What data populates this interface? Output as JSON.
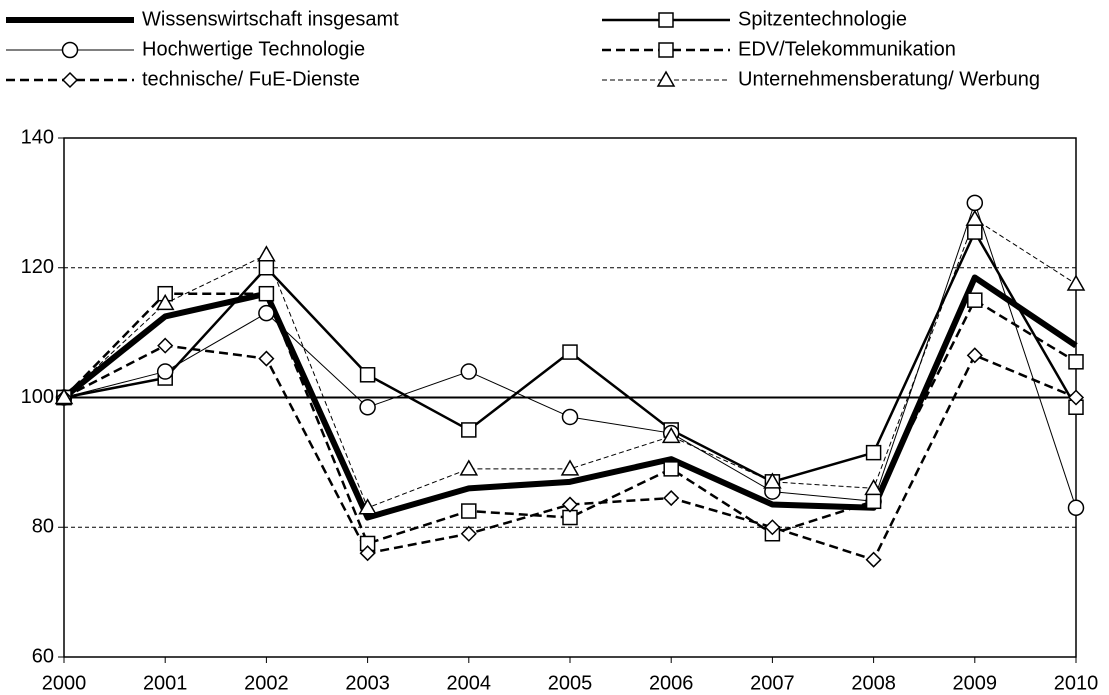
{
  "chart_data": {
    "type": "line",
    "x": [
      2000,
      2001,
      2002,
      2003,
      2004,
      2005,
      2006,
      2007,
      2008,
      2009,
      2010
    ],
    "xlim": [
      2000,
      2010
    ],
    "xticks": [
      2000,
      2001,
      2002,
      2003,
      2004,
      2005,
      2006,
      2007,
      2008,
      2009,
      2010
    ],
    "ylim": [
      60,
      140
    ],
    "yticks": [
      60,
      80,
      100,
      120,
      140
    ],
    "grid": true,
    "reference_line": 100,
    "series": [
      {
        "name": "Wissenswirtschaft insgesamt",
        "color": "#000000",
        "width": 6,
        "dash": "solid",
        "marker": "none",
        "values": [
          100,
          112.5,
          116,
          81.5,
          86,
          87,
          90.5,
          83.5,
          83,
          118.5,
          108
        ]
      },
      {
        "name": "Spitzentechnologie",
        "color": "#000000",
        "width": 2.5,
        "dash": "solid",
        "marker": "square",
        "values": [
          100,
          103,
          120,
          103.5,
          95,
          107,
          95,
          87,
          91.5,
          125.5,
          98.5
        ]
      },
      {
        "name": "Hochwertige Technologie",
        "color": "#000000",
        "width": 1,
        "dash": "solid",
        "marker": "circle",
        "values": [
          100,
          104,
          113,
          98.5,
          104,
          97,
          94.5,
          85.5,
          84,
          130,
          83
        ]
      },
      {
        "name": "EDV/Telekommunikation",
        "color": "#000000",
        "width": 2.5,
        "dash": "dashed",
        "marker": "square",
        "values": [
          100,
          116,
          116,
          77.5,
          82.5,
          81.5,
          89,
          79,
          84,
          115,
          105.5
        ]
      },
      {
        "name": "technische/ FuE-Dienste",
        "color": "#000000",
        "width": 2.5,
        "dash": "dashed",
        "marker": "diamond",
        "values": [
          100,
          108,
          106,
          76,
          79,
          83.5,
          84.5,
          80,
          75,
          106.5,
          100
        ]
      },
      {
        "name": "Unternehmensberatung/ Werbung",
        "color": "#000000",
        "width": 1,
        "dash": "dashed",
        "marker": "triangle",
        "values": [
          100,
          114.5,
          122,
          83,
          89,
          89,
          94,
          87,
          86,
          127.5,
          117.5
        ]
      }
    ]
  }
}
